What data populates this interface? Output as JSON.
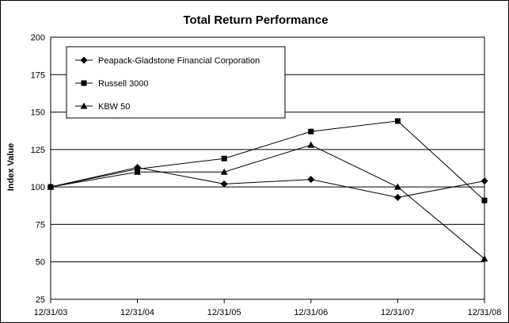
{
  "chart_data": {
    "type": "line",
    "title": "Total Return Performance",
    "xlabel": "",
    "ylabel": "Index Value",
    "categories": [
      "12/31/03",
      "12/31/04",
      "12/31/05",
      "12/31/06",
      "12/31/07",
      "12/31/08"
    ],
    "ylim": [
      25,
      200
    ],
    "yticks": [
      25,
      50,
      75,
      100,
      125,
      150,
      175,
      200
    ],
    "grid": true,
    "legend_position": "top-left",
    "series": [
      {
        "name": "Peapack-Gladstone Financial Corporation",
        "marker": "diamond",
        "values": [
          100,
          113,
          102,
          105,
          93,
          104
        ]
      },
      {
        "name": "Russell 3000",
        "marker": "square",
        "values": [
          100,
          112,
          119,
          137,
          144,
          91
        ]
      },
      {
        "name": "KBW 50",
        "marker": "triangle",
        "values": [
          100,
          110,
          110,
          128,
          100,
          52
        ]
      }
    ],
    "colors": {
      "line": "#000000",
      "grid": "#000000",
      "background": "#ffffff"
    }
  }
}
